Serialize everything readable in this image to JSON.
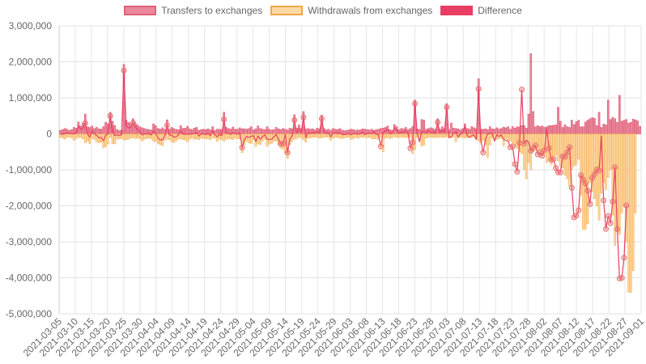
{
  "chart_data": {
    "type": "bar",
    "x_ticks": [
      "2021-03-05",
      "2021-03-10",
      "2021-03-15",
      "2021-03-20",
      "2021-03-25",
      "2021-03-30",
      "2021-04-04",
      "2021-04-09",
      "2021-04-14",
      "2021-04-19",
      "2021-04-24",
      "2021-04-29",
      "2021-05-04",
      "2021-05-09",
      "2021-05-14",
      "2021-05-19",
      "2021-05-24",
      "2021-05-29",
      "2021-06-03",
      "2021-06-08",
      "2021-06-13",
      "2021-06-18",
      "2021-06-23",
      "2021-06-28",
      "2021-07-03",
      "2021-07-08",
      "2021-07-13",
      "2021-07-18",
      "2021-07-23",
      "2021-07-28",
      "2021-08-02",
      "2021-08-07",
      "2021-08-12",
      "2021-08-17",
      "2021-08-22",
      "2021-08-27",
      "2021-09-01"
    ],
    "y_ticks": [
      "3,000,000",
      "2,000,000",
      "1,000,000",
      "0",
      "-1,000,000",
      "-2,000,000",
      "-3,000,000",
      "-4,000,000",
      "-5,000,000"
    ],
    "ylim": [
      -5000000,
      3000000
    ],
    "grid": true,
    "legend_position": "top",
    "series": [
      {
        "name": "Transfers to exchanges",
        "color": "#e8738a",
        "values": [
          100000,
          120000,
          150000,
          130000,
          100000,
          120000,
          180000,
          160000,
          330000,
          220000,
          300000,
          550000,
          200000,
          180000,
          220000,
          150000,
          180000,
          140000,
          130000,
          200000,
          320000,
          280000,
          600000,
          350000,
          230000,
          120000,
          90000,
          110000,
          1930000,
          380000,
          320000,
          290000,
          420000,
          310000,
          250000,
          200000,
          170000,
          150000,
          130000,
          120000,
          110000,
          280000,
          230000,
          150000,
          130000,
          170000,
          130000,
          390000,
          130000,
          180000,
          150000,
          120000,
          120000,
          230000,
          150000,
          160000,
          210000,
          140000,
          120000,
          160000,
          180000,
          100000,
          120000,
          130000,
          120000,
          140000,
          110000,
          200000,
          100000,
          130000,
          130000,
          120000,
          600000,
          180000,
          150000,
          130000,
          190000,
          130000,
          130000,
          170000,
          140000,
          140000,
          130000,
          150000,
          200000,
          110000,
          140000,
          220000,
          150000,
          130000,
          120000,
          200000,
          130000,
          110000,
          120000,
          180000,
          140000,
          120000,
          150000,
          130000,
          110000,
          160000,
          140000,
          530000,
          160000,
          250000,
          150000,
          620000,
          130000,
          150000,
          130000,
          140000,
          110000,
          160000,
          140000,
          520000,
          150000,
          110000,
          130000,
          100000,
          150000,
          130000,
          120000,
          150000,
          110000,
          90000,
          100000,
          110000,
          130000,
          120000,
          100000,
          110000,
          110000,
          140000,
          130000,
          120000,
          110000,
          130000,
          100000,
          120000,
          130000,
          150000,
          160000,
          180000,
          220000,
          120000,
          100000,
          260000,
          200000,
          120000,
          150000,
          140000,
          180000,
          120000,
          150000,
          200000,
          940000,
          140000,
          120000,
          400000,
          380000,
          130000,
          150000,
          170000,
          150000,
          120000,
          420000,
          130000,
          200000,
          150000,
          840000,
          110000,
          300000,
          160000,
          150000,
          140000,
          110000,
          150000,
          280000,
          150000,
          130000,
          200000,
          170000,
          140000,
          1530000,
          130000,
          130000,
          140000,
          120000,
          200000,
          140000,
          130000,
          170000,
          130000,
          150000,
          190000,
          170000,
          200000,
          130000,
          200000,
          160000,
          200000,
          190000,
          230000,
          230000,
          160000,
          550000,
          2230000,
          620000,
          200000,
          230000,
          200000,
          220000,
          180000,
          200000,
          230000,
          230000,
          240000,
          250000,
          740000,
          350000,
          180000,
          250000,
          200000,
          180000,
          380000,
          260000,
          340000,
          380000,
          200000,
          200000,
          330000,
          380000,
          420000,
          450000,
          430000,
          230000,
          600000,
          180000,
          270000,
          250000,
          940000,
          400000,
          460000,
          420000,
          320000,
          1070000,
          350000,
          380000,
          400000,
          300000,
          320000,
          410000,
          390000,
          360000,
          210000
        ]
      },
      {
        "name": "Withdrawals from exchanges",
        "color": "#ffd59a",
        "values": [
          -100000,
          -110000,
          -150000,
          -100000,
          -90000,
          -110000,
          -180000,
          -130000,
          -100000,
          -100000,
          -140000,
          -250000,
          -200000,
          -270000,
          -130000,
          -150000,
          -220000,
          -250000,
          -230000,
          -390000,
          -360000,
          -280000,
          -100000,
          -270000,
          -280000,
          -150000,
          -140000,
          -130000,
          -170000,
          -160000,
          -150000,
          -120000,
          -110000,
          -130000,
          -120000,
          -140000,
          -200000,
          -150000,
          -130000,
          -120000,
          -140000,
          -200000,
          -210000,
          -270000,
          -300000,
          -330000,
          -180000,
          -150000,
          -160000,
          -220000,
          -240000,
          -200000,
          -150000,
          -140000,
          -160000,
          -170000,
          -220000,
          -150000,
          -120000,
          -150000,
          -140000,
          -160000,
          -120000,
          -130000,
          -140000,
          -130000,
          -160000,
          -110000,
          -120000,
          -210000,
          -140000,
          -170000,
          -200000,
          -150000,
          -130000,
          -140000,
          -160000,
          -120000,
          -140000,
          -140000,
          -520000,
          -300000,
          -200000,
          -250000,
          -270000,
          -160000,
          -350000,
          -280000,
          -300000,
          -200000,
          -150000,
          -350000,
          -280000,
          -260000,
          -200000,
          -200000,
          -300000,
          -400000,
          -420000,
          -550000,
          -680000,
          -300000,
          -200000,
          -150000,
          -130000,
          -100000,
          -110000,
          -160000,
          -230000,
          -120000,
          -110000,
          -100000,
          -90000,
          -100000,
          -120000,
          -110000,
          -100000,
          -90000,
          -100000,
          -180000,
          -120000,
          -100000,
          -100000,
          -120000,
          -130000,
          -110000,
          -100000,
          -100000,
          -150000,
          -130000,
          -100000,
          -120000,
          -90000,
          -100000,
          -90000,
          -110000,
          -100000,
          -130000,
          -140000,
          -130000,
          -160000,
          -100000,
          -500000,
          -120000,
          -100000,
          -130000,
          -110000,
          -80000,
          -100000,
          -100000,
          -90000,
          -100000,
          -100000,
          -100000,
          -100000,
          -550000,
          -440000,
          -100000,
          -110000,
          -340000,
          -310000,
          -120000,
          -100000,
          -90000,
          -100000,
          -100000,
          -100000,
          -90000,
          -100000,
          -100000,
          -80000,
          -100000,
          -100000,
          -90000,
          -220000,
          -110000,
          -100000,
          -100000,
          -120000,
          -100000,
          -100000,
          -100000,
          -100000,
          -150000,
          -200000,
          -250000,
          -180000,
          -300000,
          -650000,
          -300000,
          -120000,
          -180000,
          -160000,
          -130000,
          -120000,
          -330000,
          -130000,
          -200000,
          -200000,
          -280000,
          -350000,
          -400000,
          -500000,
          -550000,
          -1000000,
          -1250000,
          -800000,
          -1000000,
          -500000,
          -380000,
          -450000,
          -650000,
          -600000,
          -550000,
          -800000,
          -750000,
          -850000,
          -700000,
          -600000,
          -750000,
          -900000,
          -950000,
          -1150000,
          -1250000,
          -1450000,
          -1000000,
          -900000,
          -850000,
          -700000,
          -1700000,
          -2650000,
          -2650000,
          -2500000,
          -1350000,
          -1600000,
          -1800000,
          -2000000,
          -2400000,
          -1650000,
          -1350000,
          -1550000,
          -1200000,
          -1000000,
          -2250000,
          -3100000,
          -2700000,
          -2800000,
          -2200000,
          -2000000,
          -3000000,
          -4400000,
          -4400000,
          -3800000,
          -2200000
        ]
      },
      {
        "name": "Difference",
        "color": "#e83e63",
        "values": [
          0,
          -10000,
          0,
          30000,
          10000,
          10000,
          0,
          30000,
          230000,
          120000,
          160000,
          300000,
          0,
          -90000,
          90000,
          0,
          -40000,
          -110000,
          -100000,
          -190000,
          -40000,
          0,
          500000,
          80000,
          -50000,
          -30000,
          -50000,
          -20000,
          1760000,
          220000,
          170000,
          170000,
          310000,
          190000,
          130000,
          60000,
          -30000,
          0,
          0,
          0,
          -30000,
          80000,
          20000,
          -120000,
          -170000,
          -160000,
          -50000,
          240000,
          -30000,
          -40000,
          -90000,
          -80000,
          -30000,
          90000,
          -10000,
          -10000,
          -10000,
          -10000,
          0,
          10000,
          40000,
          -60000,
          0,
          0,
          -20000,
          10000,
          -50000,
          90000,
          -20000,
          -80000,
          -10000,
          -50000,
          400000,
          30000,
          20000,
          -10000,
          30000,
          10000,
          -10000,
          30000,
          -380000,
          -160000,
          -70000,
          -100000,
          -70000,
          -50000,
          -210000,
          -60000,
          -150000,
          -70000,
          -30000,
          -150000,
          -150000,
          -150000,
          -80000,
          -20000,
          -160000,
          -280000,
          -270000,
          -20000,
          -520000,
          -140000,
          -60000,
          380000,
          30000,
          150000,
          40000,
          460000,
          -100000,
          30000,
          20000,
          40000,
          20000,
          60000,
          20000,
          420000,
          50000,
          20000,
          30000,
          -80000,
          30000,
          30000,
          20000,
          30000,
          -20000,
          -20000,
          0,
          -10000,
          -20000,
          10000,
          0,
          -10000,
          10000,
          40000,
          -20000,
          20000,
          10000,
          10000,
          60000,
          -10000,
          -30000,
          -350000,
          40000,
          80000,
          120000,
          10000,
          20000,
          170000,
          100000,
          20000,
          50000,
          40000,
          80000,
          20000,
          -400000,
          -240000,
          840000,
          30000,
          -220000,
          60000,
          70000,
          30000,
          100000,
          40000,
          50000,
          20000,
          320000,
          30000,
          100000,
          50000,
          740000,
          -110000,
          -80000,
          20000,
          50000,
          -80000,
          -10000,
          30000,
          200000,
          -50000,
          -100000,
          -50000,
          -30000,
          -160000,
          1250000,
          -170000,
          -520000,
          -160000,
          0,
          20000,
          10000,
          -200000,
          -30000,
          -70000,
          -30000,
          -150000,
          -180000,
          -200000,
          -370000,
          -350000,
          -840000,
          -1050000,
          -250000,
          1230000,
          -270000,
          -180000,
          -230000,
          -470000,
          -400000,
          -320000,
          -570000,
          -520000,
          -610000,
          -450000,
          140000,
          -400000,
          -720000,
          -700000,
          -950000,
          -1070000,
          -1070000,
          -620000,
          -640000,
          -510000,
          -370000,
          -1500000,
          -2320000,
          -2270000,
          -2120000,
          -1150000,
          -1270000,
          -1380000,
          -1580000,
          -1950000,
          -1220000,
          -1120000,
          -990000,
          -1020000,
          -60000,
          -1850000,
          -2640000,
          -2280000,
          -2480000,
          -1880000,
          -930000,
          -2650000,
          -4020000,
          -4000000,
          -3440000,
          -1990000
        ]
      }
    ]
  }
}
